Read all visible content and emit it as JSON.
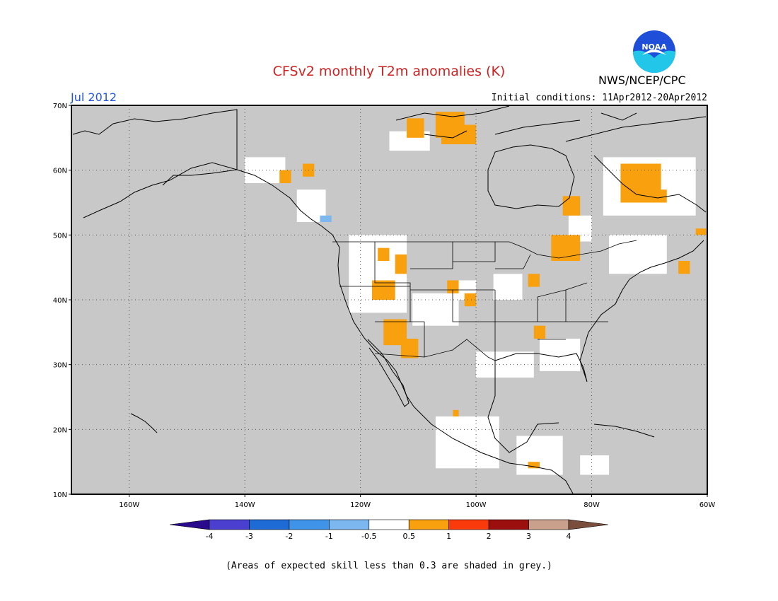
{
  "title": "CFSv2 monthly T2m anomalies (K)",
  "org_label": "NWS/NCEP/CPC",
  "logo_text": "NOAA",
  "month_label": "Jul 2012",
  "initial_conditions": "Initial conditions: 11Apr2012-20Apr2012",
  "footnote": "(Areas of expected skill less than 0.3 are shaded in grey.)",
  "map": {
    "lon_range": [
      -170,
      -60
    ],
    "lat_range": [
      10,
      70
    ],
    "background_color": "#c8c8c8",
    "lat_ticks": [
      {
        "value": 70,
        "label": "70N"
      },
      {
        "value": 60,
        "label": "60N"
      },
      {
        "value": 50,
        "label": "50N"
      },
      {
        "value": 40,
        "label": "40N"
      },
      {
        "value": 30,
        "label": "30N"
      },
      {
        "value": 20,
        "label": "20N"
      },
      {
        "value": 10,
        "label": "10N"
      }
    ],
    "lon_ticks": [
      {
        "value": -160,
        "label": "160W"
      },
      {
        "value": -140,
        "label": "140W"
      },
      {
        "value": -120,
        "label": "120W"
      },
      {
        "value": -100,
        "label": "100W"
      },
      {
        "value": -80,
        "label": "80W"
      },
      {
        "value": -60,
        "label": "60W"
      }
    ]
  },
  "anomaly_regions": [
    {
      "class": "white",
      "lon": [
        -140,
        -133
      ],
      "lat": [
        58,
        62
      ]
    },
    {
      "class": "white",
      "lon": [
        -131,
        -126
      ],
      "lat": [
        52,
        57
      ]
    },
    {
      "class": "white",
      "lon": [
        -122,
        -112
      ],
      "lat": [
        38,
        50
      ]
    },
    {
      "class": "white",
      "lon": [
        -111,
        -103
      ],
      "lat": [
        36,
        41
      ]
    },
    {
      "class": "white",
      "lon": [
        -104,
        -100
      ],
      "lat": [
        40,
        43
      ]
    },
    {
      "class": "white",
      "lon": [
        -97,
        -92
      ],
      "lat": [
        40,
        44
      ]
    },
    {
      "class": "white",
      "lon": [
        -89,
        -82
      ],
      "lat": [
        29,
        34
      ]
    },
    {
      "class": "white",
      "lon": [
        -100,
        -90
      ],
      "lat": [
        28,
        32
      ]
    },
    {
      "class": "white",
      "lon": [
        -107,
        -96
      ],
      "lat": [
        14,
        22
      ]
    },
    {
      "class": "white",
      "lon": [
        -93,
        -85
      ],
      "lat": [
        13,
        19
      ]
    },
    {
      "class": "white",
      "lon": [
        -77,
        -67
      ],
      "lat": [
        44,
        50
      ]
    },
    {
      "class": "white",
      "lon": [
        -78,
        -62
      ],
      "lat": [
        53,
        62
      ]
    },
    {
      "class": "white",
      "lon": [
        -115,
        -108
      ],
      "lat": [
        63,
        66
      ]
    },
    {
      "class": "white",
      "lon": [
        -82,
        -77
      ],
      "lat": [
        13,
        16
      ]
    },
    {
      "class": "white",
      "lon": [
        -84,
        -80
      ],
      "lat": [
        49,
        53
      ]
    },
    {
      "class": "orange",
      "lon": [
        -114,
        -112
      ],
      "lat": [
        44,
        47
      ]
    },
    {
      "class": "orange",
      "lon": [
        -118,
        -114
      ],
      "lat": [
        40,
        43
      ]
    },
    {
      "class": "orange",
      "lon": [
        -116,
        -112
      ],
      "lat": [
        33,
        37
      ]
    },
    {
      "class": "orange",
      "lon": [
        -113,
        -110
      ],
      "lat": [
        31,
        34
      ]
    },
    {
      "class": "orange",
      "lon": [
        -112,
        -109
      ],
      "lat": [
        65,
        68
      ]
    },
    {
      "class": "orange",
      "lon": [
        -107,
        -102
      ],
      "lat": [
        65,
        69
      ]
    },
    {
      "class": "orange",
      "lon": [
        -106,
        -100
      ],
      "lat": [
        64,
        67
      ]
    },
    {
      "class": "orange",
      "lon": [
        -75,
        -68
      ],
      "lat": [
        55,
        61
      ]
    },
    {
      "class": "orange",
      "lon": [
        -73,
        -67
      ],
      "lat": [
        55,
        57
      ]
    },
    {
      "class": "orange",
      "lon": [
        -85,
        -82
      ],
      "lat": [
        53,
        56
      ]
    },
    {
      "class": "orange",
      "lon": [
        -87,
        -82
      ],
      "lat": [
        46,
        50
      ]
    },
    {
      "class": "orange",
      "lon": [
        -90,
        -88
      ],
      "lat": [
        34,
        36
      ]
    },
    {
      "class": "orange",
      "lon": [
        -91,
        -89
      ],
      "lat": [
        42,
        44
      ]
    },
    {
      "class": "orange",
      "lon": [
        -65,
        -63
      ],
      "lat": [
        44,
        46
      ]
    },
    {
      "class": "orange",
      "lon": [
        -105,
        -103
      ],
      "lat": [
        41,
        43
      ]
    },
    {
      "class": "orange",
      "lon": [
        -102,
        -100
      ],
      "lat": [
        39,
        41
      ]
    },
    {
      "class": "orange",
      "lon": [
        -134,
        -132
      ],
      "lat": [
        58,
        60
      ]
    },
    {
      "class": "orange",
      "lon": [
        -130,
        -128
      ],
      "lat": [
        59,
        61
      ]
    },
    {
      "class": "orange",
      "lon": [
        -62,
        -60
      ],
      "lat": [
        50,
        51
      ]
    },
    {
      "class": "orange",
      "lon": [
        -117,
        -115
      ],
      "lat": [
        46,
        48
      ]
    },
    {
      "class": "orange",
      "lon": [
        -91,
        -89
      ],
      "lat": [
        14,
        15
      ]
    },
    {
      "class": "orange",
      "lon": [
        -104,
        -103
      ],
      "lat": [
        22,
        23
      ]
    },
    {
      "class": "light-blue",
      "lon": [
        -127,
        -125
      ],
      "lat": [
        52,
        53
      ]
    }
  ],
  "colorbar": {
    "colors": [
      "#2a0a8c",
      "#4b3fcf",
      "#1e6bd6",
      "#3f93e8",
      "#7cb7f0",
      "#ffffff",
      "#f9a00f",
      "#fb3a0c",
      "#9b0f0f",
      "#c9a08c",
      "#7a4e3c"
    ],
    "labels": [
      "-4",
      "-3",
      "-2",
      "-1",
      "-0.5",
      "0.5",
      "1",
      "2",
      "3",
      "4"
    ]
  },
  "legend_colors": {
    "white": "#ffffff",
    "orange": "#f9a00f",
    "light-blue": "#7cb7f0",
    "grey": "#c8c8c8"
  }
}
